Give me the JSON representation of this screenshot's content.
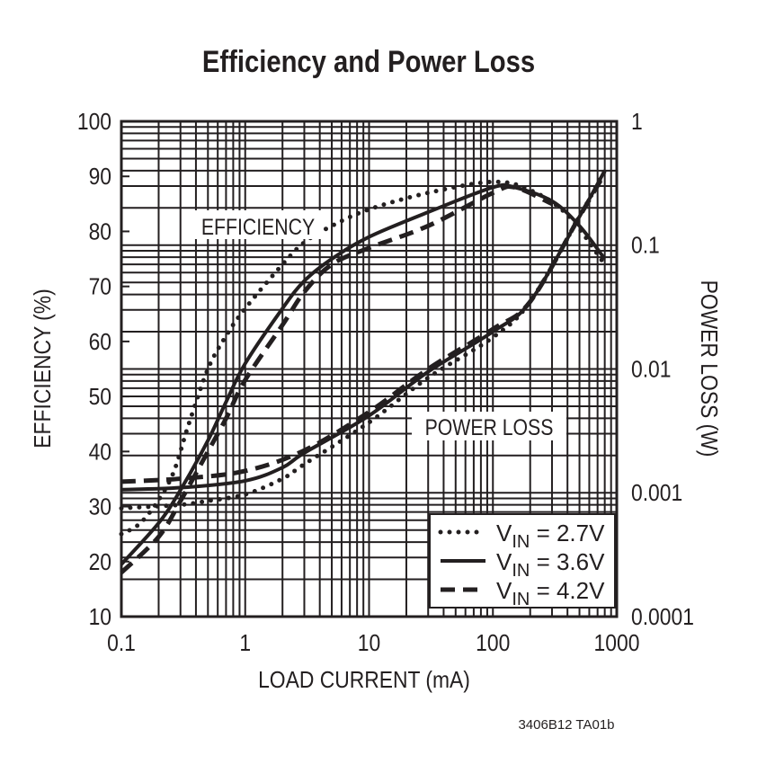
{
  "chart_data": {
    "type": "line",
    "title": "Efficiency and Power Loss",
    "xlabel": "LOAD CURRENT (mA)",
    "ylabel": "EFFICIENCY (%)",
    "y2label": "POWER LOSS (W)",
    "xscale": "log",
    "xlim": [
      0.1,
      1000
    ],
    "ylim": [
      10,
      100
    ],
    "y2scale": "log",
    "y2lim": [
      0.0001,
      1
    ],
    "grid": true,
    "legend_position": "bottom-right",
    "x_ticks": [
      "0.1",
      "1",
      "10",
      "100",
      "1000"
    ],
    "y_ticks": [
      "100",
      "90",
      "80",
      "70",
      "60",
      "50",
      "40",
      "30",
      "20",
      "10"
    ],
    "y2_ticks": [
      "1",
      "0.1",
      "0.01",
      "0.001",
      "0.0001"
    ],
    "annotations": [
      "EFFICIENCY",
      "POWER LOSS"
    ],
    "legend": [
      {
        "prefix": "V",
        "sub": "IN",
        "suffix": " = 2.7V",
        "style": "dotted"
      },
      {
        "prefix": "V",
        "sub": "IN",
        "suffix": " = 3.6V",
        "style": "solid"
      },
      {
        "prefix": "V",
        "sub": "IN",
        "suffix": " = 4.2V",
        "style": "dashed"
      }
    ],
    "series": [
      {
        "group": "efficiency",
        "vin": "2.7V",
        "style": "dotted",
        "axis": "left",
        "x": [
          0.1,
          0.15,
          0.25,
          0.35,
          0.5,
          0.7,
          1,
          2,
          3,
          5,
          10,
          30,
          100,
          200,
          400,
          800
        ],
        "y": [
          25,
          27.5,
          35,
          45,
          55,
          61,
          66,
          74,
          78,
          81,
          84,
          87,
          89,
          87.5,
          83,
          74
        ]
      },
      {
        "group": "efficiency",
        "vin": "3.6V",
        "style": "solid",
        "axis": "left",
        "x": [
          0.1,
          0.2,
          0.3,
          0.5,
          0.7,
          1,
          2,
          3,
          5,
          10,
          30,
          100,
          150,
          300,
          500,
          800
        ],
        "y": [
          19.5,
          27,
          33,
          42,
          49,
          56,
          66,
          71,
          75,
          79,
          83.5,
          88,
          88,
          85.5,
          81,
          75
        ]
      },
      {
        "group": "efficiency",
        "vin": "4.2V",
        "style": "dashed",
        "axis": "left",
        "x": [
          0.1,
          0.2,
          0.3,
          0.5,
          0.7,
          1,
          2,
          3,
          5,
          10,
          30,
          100,
          150,
          300
        ],
        "y": [
          18,
          24.5,
          31,
          40,
          46,
          53,
          63,
          69,
          74,
          77,
          81,
          87,
          88,
          85
        ]
      },
      {
        "group": "power_loss",
        "vin": "2.7V",
        "style": "dotted",
        "axis": "right",
        "x": [
          0.1,
          0.3,
          0.5,
          1,
          2,
          3,
          10,
          30,
          100,
          200,
          500,
          800
        ],
        "y": [
          0.00075,
          0.0008,
          0.00086,
          0.00097,
          0.0013,
          0.0017,
          0.0037,
          0.0085,
          0.018,
          0.035,
          0.17,
          0.4
        ]
      },
      {
        "group": "power_loss",
        "vin": "3.6V",
        "style": "solid",
        "axis": "right",
        "x": [
          0.1,
          0.3,
          1,
          2,
          3,
          10,
          30,
          100,
          200,
          500,
          800
        ],
        "y": [
          0.00106,
          0.0011,
          0.00125,
          0.0016,
          0.0021,
          0.0042,
          0.0095,
          0.02,
          0.035,
          0.17,
          0.4
        ]
      },
      {
        "group": "power_loss",
        "vin": "4.2V",
        "style": "dashed",
        "axis": "right",
        "x": [
          0.1,
          0.3,
          1,
          3,
          10,
          30,
          100,
          200,
          500,
          800
        ],
        "y": [
          0.00123,
          0.0013,
          0.0015,
          0.0022,
          0.0045,
          0.01,
          0.021,
          0.035,
          0.17,
          0.38
        ]
      }
    ]
  },
  "footer": "3406B12 TA01b"
}
